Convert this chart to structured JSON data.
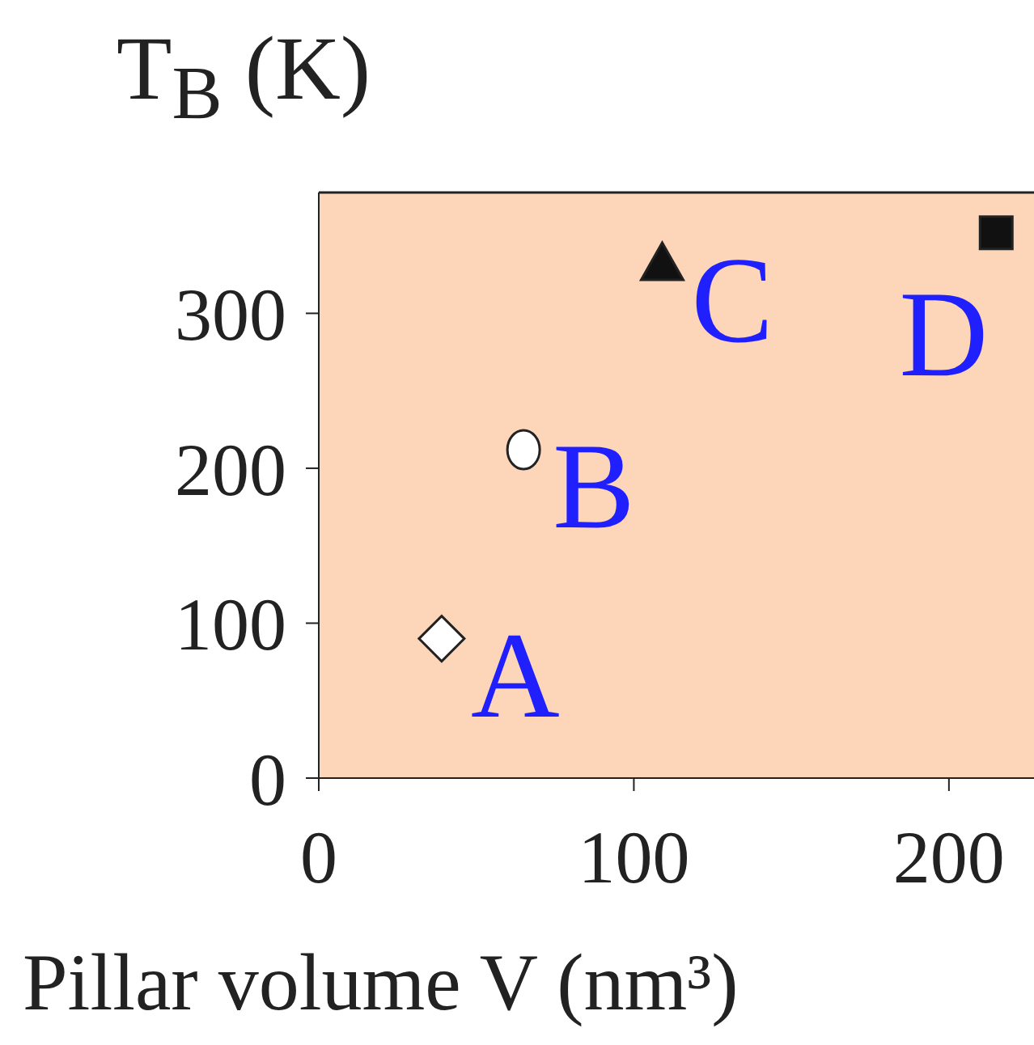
{
  "chart_data": {
    "type": "scatter",
    "ylabel": "T$_{B}$ (K)",
    "xlabel": "Pillar volume  V (nm³)",
    "series": [
      {
        "color": "#ffffff",
        "marker": "diamond",
        "x": [
          39
        ],
        "values": [
          90
        ]
      },
      {
        "color": "#ffffff",
        "marker": "circle",
        "x": [
          65
        ],
        "values": [
          212
        ]
      },
      {
        "color": "#111111",
        "marker": "triangle",
        "x": [
          109
        ],
        "values": [
          332
        ]
      },
      {
        "color": "#111111",
        "marker": "square",
        "x": [
          215
        ],
        "values": [
          352
        ]
      }
    ],
    "annotations": [
      {
        "text": "A",
        "x": 39,
        "y": 90
      },
      {
        "text": "B",
        "x": 65,
        "y": 212
      },
      {
        "text": "C",
        "x": 109,
        "y": 332
      },
      {
        "text": "D",
        "x": 215,
        "y": 352
      }
    ],
    "xlim": [
      0,
      227
    ],
    "xticks": [
      0,
      100,
      200
    ],
    "ylim": [
      0,
      378
    ],
    "yticks": [
      0,
      100,
      200,
      300
    ],
    "grid": false,
    "legend": false
  }
}
